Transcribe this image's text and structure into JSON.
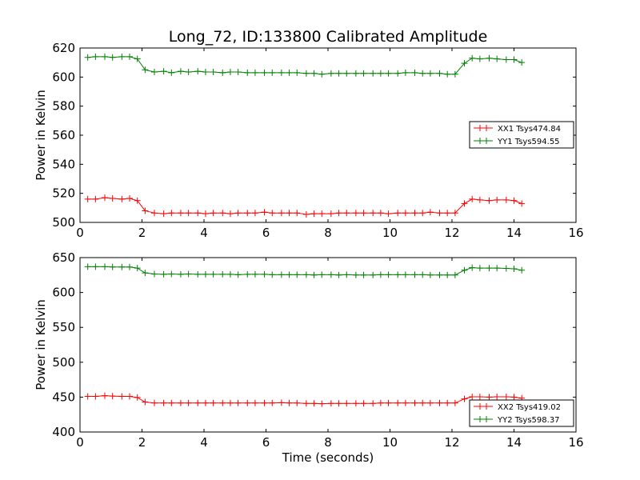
{
  "chart_data": [
    {
      "type": "line",
      "title": "Long_72, ID:133800 Calibrated Amplitude",
      "xlabel": "",
      "ylabel": "Power in Kelvin",
      "xlim": [
        0,
        16
      ],
      "ylim": [
        500,
        620
      ],
      "xticks": [
        0,
        2,
        4,
        6,
        8,
        10,
        12,
        14,
        16
      ],
      "yticks": [
        500,
        520,
        540,
        560,
        580,
        600,
        620
      ],
      "grid": false,
      "legend": "center-right",
      "x": [
        0.25,
        0.5,
        0.8,
        1.05,
        1.35,
        1.6,
        1.85,
        2.1,
        2.4,
        2.7,
        2.95,
        3.25,
        3.5,
        3.8,
        4.05,
        4.3,
        4.6,
        4.85,
        5.1,
        5.4,
        5.65,
        5.95,
        6.2,
        6.5,
        6.75,
        7.0,
        7.3,
        7.55,
        7.8,
        8.1,
        8.35,
        8.6,
        8.9,
        9.15,
        9.45,
        9.7,
        9.95,
        10.25,
        10.5,
        10.8,
        11.05,
        11.3,
        11.6,
        11.85,
        12.1,
        12.4,
        12.65,
        12.9,
        13.2,
        13.45,
        13.75,
        14.0,
        14.25
      ],
      "series": [
        {
          "name": "XX1 Tsys474.84",
          "color": "#ff0000",
          "values": [
            516,
            516,
            517,
            516.5,
            516,
            516.5,
            515,
            508,
            506.5,
            506,
            506.5,
            506.5,
            506.5,
            506.5,
            506,
            506.5,
            506.5,
            506,
            506.5,
            506.5,
            506.5,
            507,
            506.5,
            506.5,
            506.5,
            506.5,
            505.5,
            506,
            506,
            506,
            506.5,
            506.5,
            506.5,
            506.5,
            506.5,
            506.5,
            506,
            506.5,
            506.5,
            506.5,
            506.5,
            507,
            506.5,
            506.5,
            506.5,
            513,
            516,
            515.5,
            515,
            515.5,
            515.5,
            515,
            513
          ]
        },
        {
          "name": "YY1 Tsys594.55",
          "color": "#008000",
          "values": [
            613.5,
            614,
            614,
            613.5,
            614,
            614,
            612.5,
            605,
            603.5,
            604,
            603,
            604,
            603.5,
            604,
            603.5,
            603.5,
            603,
            603.5,
            603.5,
            603,
            603,
            603,
            603,
            603,
            603,
            603,
            602.5,
            602.5,
            602,
            602.5,
            602.5,
            602.5,
            602.5,
            602.5,
            602.5,
            602.5,
            602.5,
            602.5,
            603,
            603,
            602.5,
            602.5,
            602.5,
            602,
            602,
            609.5,
            613,
            612.5,
            613,
            612.5,
            612,
            612,
            610
          ]
        }
      ]
    },
    {
      "type": "line",
      "title": "",
      "xlabel": "Time (seconds)",
      "ylabel": "Power in Kelvin",
      "xlim": [
        0,
        16
      ],
      "ylim": [
        400,
        650
      ],
      "xticks": [
        0,
        2,
        4,
        6,
        8,
        10,
        12,
        14,
        16
      ],
      "yticks": [
        400,
        450,
        500,
        550,
        600,
        650
      ],
      "grid": false,
      "legend": "lower-right",
      "x": [
        0.25,
        0.5,
        0.8,
        1.05,
        1.35,
        1.6,
        1.85,
        2.1,
        2.4,
        2.7,
        2.95,
        3.25,
        3.5,
        3.8,
        4.05,
        4.3,
        4.6,
        4.85,
        5.1,
        5.4,
        5.65,
        5.95,
        6.2,
        6.5,
        6.75,
        7.0,
        7.3,
        7.55,
        7.8,
        8.1,
        8.35,
        8.6,
        8.9,
        9.15,
        9.45,
        9.7,
        9.95,
        10.25,
        10.5,
        10.8,
        11.05,
        11.3,
        11.6,
        11.85,
        12.1,
        12.4,
        12.65,
        12.9,
        13.2,
        13.45,
        13.75,
        14.0,
        14.25
      ],
      "series": [
        {
          "name": "XX2 Tsys419.02",
          "color": "#ff0000",
          "values": [
            451,
            451,
            452,
            451.5,
            451,
            451,
            449.5,
            443,
            441.5,
            441.5,
            441.5,
            441.5,
            441.5,
            441.5,
            441.5,
            441.5,
            441.5,
            441.5,
            441.5,
            441.5,
            441.5,
            441.5,
            441.5,
            442,
            441.5,
            441.5,
            441,
            441,
            440.5,
            441,
            441,
            441,
            441,
            441,
            441,
            441.5,
            441.5,
            441.5,
            441.5,
            441.5,
            441.5,
            441.5,
            441.5,
            441.5,
            441.5,
            447.5,
            450.5,
            450.5,
            450,
            450.5,
            450.5,
            450,
            448.5
          ]
        },
        {
          "name": "YY2 Tsys598.37",
          "color": "#008000",
          "values": [
            637,
            637,
            637,
            636.5,
            636.5,
            636.5,
            635,
            628,
            626.5,
            626,
            626.5,
            626,
            626.5,
            626,
            626,
            626,
            626,
            626,
            625.5,
            626,
            626,
            626,
            625.5,
            625.5,
            625.5,
            625.5,
            625.5,
            625,
            625.5,
            625.5,
            625,
            625.5,
            625,
            625,
            625,
            625.5,
            625.5,
            625.5,
            625.5,
            625.5,
            625.5,
            625,
            625,
            625,
            625,
            632,
            635.5,
            635,
            635,
            635,
            634.5,
            634,
            632
          ]
        }
      ]
    }
  ]
}
